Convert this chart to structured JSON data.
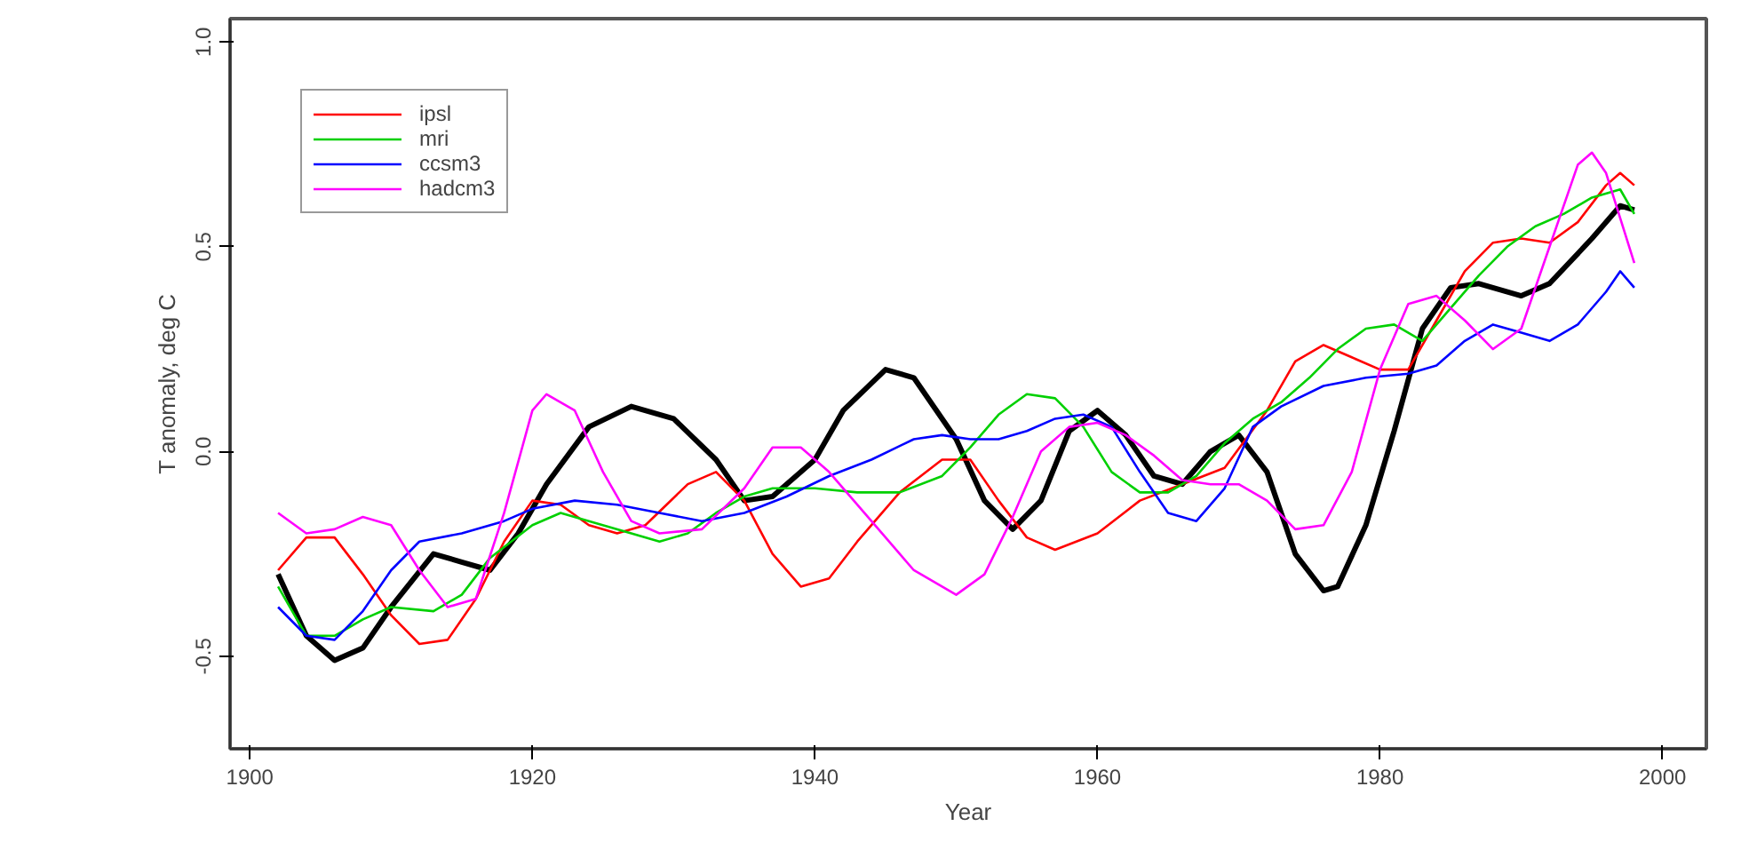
{
  "chart_data": {
    "type": "line",
    "xlabel": "Year",
    "ylabel": "T anomaly, deg C",
    "xlim": [
      1898.6,
      2003.1
    ],
    "ylim": [
      -0.726,
      1.057
    ],
    "xticks": [
      1900,
      1920,
      1940,
      1960,
      1980,
      2000
    ],
    "yticks": [
      -0.5,
      {
        "value": 0,
        "label": "0.0"
      },
      0.5,
      {
        "value": 1,
        "label": "1.0"
      }
    ],
    "grid": false,
    "legend": "top left",
    "series": [
      {
        "color": "#000000",
        "x": [
          1902,
          1904,
          1906,
          1908,
          1910,
          1913,
          1915,
          1917,
          1919,
          1921,
          1924,
          1927,
          1930,
          1933,
          1935,
          1937,
          1940,
          1942,
          1945,
          1947,
          1950,
          1952,
          1954,
          1956,
          1958,
          1960,
          1962,
          1964,
          1966,
          1968,
          1970,
          1972,
          1974,
          1976,
          1977,
          1979,
          1981,
          1983,
          1985,
          1987,
          1990,
          1992,
          1995,
          1997,
          1998
        ],
        "values": [
          -0.3,
          -0.45,
          -0.51,
          -0.48,
          -0.38,
          -0.25,
          -0.27,
          -0.29,
          -0.2,
          -0.08,
          0.06,
          0.11,
          0.08,
          -0.02,
          -0.12,
          -0.11,
          -0.02,
          0.1,
          0.2,
          0.18,
          0.03,
          -0.12,
          -0.19,
          -0.12,
          0.05,
          0.1,
          0.04,
          -0.06,
          -0.08,
          0.0,
          0.04,
          -0.05,
          -0.25,
          -0.34,
          -0.33,
          -0.18,
          0.05,
          0.3,
          0.4,
          0.41,
          0.38,
          0.41,
          0.52,
          0.6,
          0.59
        ]
      },
      {
        "name": "ipsl",
        "color": "#ff0000",
        "x": [
          1902,
          1904,
          1906,
          1908,
          1910,
          1912,
          1914,
          1916,
          1918,
          1920,
          1922,
          1924,
          1926,
          1928,
          1931,
          1933,
          1935,
          1937,
          1939,
          1941,
          1943,
          1946,
          1949,
          1951,
          1953,
          1955,
          1957,
          1960,
          1963,
          1966,
          1969,
          1972,
          1974,
          1976,
          1978,
          1980,
          1982,
          1984,
          1986,
          1988,
          1990,
          1992,
          1994,
          1996,
          1997,
          1998
        ],
        "values": [
          -0.29,
          -0.21,
          -0.21,
          -0.3,
          -0.4,
          -0.47,
          -0.46,
          -0.36,
          -0.22,
          -0.12,
          -0.13,
          -0.18,
          -0.2,
          -0.18,
          -0.08,
          -0.05,
          -0.12,
          -0.25,
          -0.33,
          -0.31,
          -0.22,
          -0.1,
          -0.02,
          -0.02,
          -0.12,
          -0.21,
          -0.24,
          -0.2,
          -0.12,
          -0.08,
          -0.04,
          0.1,
          0.22,
          0.26,
          0.23,
          0.2,
          0.2,
          0.32,
          0.44,
          0.51,
          0.52,
          0.51,
          0.56,
          0.65,
          0.68,
          0.65
        ]
      },
      {
        "name": "mri",
        "color": "#00d000",
        "x": [
          1902,
          1904,
          1906,
          1908,
          1910,
          1913,
          1915,
          1917,
          1920,
          1922,
          1924,
          1927,
          1929,
          1931,
          1933,
          1935,
          1937,
          1940,
          1943,
          1946,
          1949,
          1951,
          1953,
          1955,
          1957,
          1959,
          1961,
          1963,
          1965,
          1967,
          1969,
          1971,
          1973,
          1975,
          1977,
          1979,
          1981,
          1983,
          1985,
          1987,
          1989,
          1991,
          1993,
          1995,
          1997,
          1998
        ],
        "values": [
          -0.33,
          -0.45,
          -0.45,
          -0.41,
          -0.38,
          -0.39,
          -0.35,
          -0.26,
          -0.18,
          -0.15,
          -0.17,
          -0.2,
          -0.22,
          -0.2,
          -0.15,
          -0.11,
          -0.09,
          -0.09,
          -0.1,
          -0.1,
          -0.06,
          0.01,
          0.09,
          0.14,
          0.13,
          0.06,
          -0.05,
          -0.1,
          -0.1,
          -0.06,
          0.02,
          0.08,
          0.12,
          0.18,
          0.25,
          0.3,
          0.31,
          0.27,
          0.35,
          0.43,
          0.5,
          0.55,
          0.58,
          0.62,
          0.64,
          0.58
        ]
      },
      {
        "name": "ccsm3",
        "color": "#0000ff",
        "x": [
          1902,
          1904,
          1906,
          1908,
          1910,
          1912,
          1915,
          1918,
          1920,
          1923,
          1926,
          1929,
          1932,
          1935,
          1938,
          1941,
          1944,
          1947,
          1949,
          1951,
          1953,
          1955,
          1957,
          1959,
          1961,
          1963,
          1965,
          1967,
          1969,
          1971,
          1973,
          1976,
          1979,
          1982,
          1984,
          1986,
          1988,
          1990,
          1992,
          1994,
          1996,
          1997,
          1998
        ],
        "values": [
          -0.38,
          -0.45,
          -0.46,
          -0.39,
          -0.29,
          -0.22,
          -0.2,
          -0.17,
          -0.14,
          -0.12,
          -0.13,
          -0.15,
          -0.17,
          -0.15,
          -0.11,
          -0.06,
          -0.02,
          0.03,
          0.04,
          0.03,
          0.03,
          0.05,
          0.08,
          0.09,
          0.06,
          -0.05,
          -0.15,
          -0.17,
          -0.09,
          0.06,
          0.11,
          0.16,
          0.18,
          0.19,
          0.21,
          0.27,
          0.31,
          0.29,
          0.27,
          0.31,
          0.39,
          0.44,
          0.4
        ]
      },
      {
        "name": "hadcm3",
        "color": "#ff00ff",
        "x": [
          1902,
          1904,
          1906,
          1908,
          1910,
          1912,
          1914,
          1916,
          1918,
          1920,
          1921,
          1923,
          1925,
          1927,
          1929,
          1932,
          1935,
          1937,
          1939,
          1941,
          1944,
          1947,
          1950,
          1952,
          1954,
          1956,
          1958,
          1960,
          1962,
          1964,
          1966,
          1968,
          1970,
          1972,
          1974,
          1976,
          1978,
          1980,
          1982,
          1984,
          1986,
          1988,
          1990,
          1992,
          1994,
          1995,
          1996,
          1998
        ],
        "values": [
          -0.15,
          -0.2,
          -0.19,
          -0.16,
          -0.18,
          -0.29,
          -0.38,
          -0.36,
          -0.15,
          0.1,
          0.14,
          0.1,
          -0.05,
          -0.17,
          -0.2,
          -0.19,
          -0.09,
          0.01,
          0.01,
          -0.05,
          -0.17,
          -0.29,
          -0.35,
          -0.3,
          -0.16,
          0.0,
          0.06,
          0.07,
          0.04,
          -0.01,
          -0.07,
          -0.08,
          -0.08,
          -0.12,
          -0.19,
          -0.18,
          -0.05,
          0.2,
          0.36,
          0.38,
          0.32,
          0.25,
          0.3,
          0.5,
          0.7,
          0.73,
          0.68,
          0.46
        ]
      }
    ]
  }
}
